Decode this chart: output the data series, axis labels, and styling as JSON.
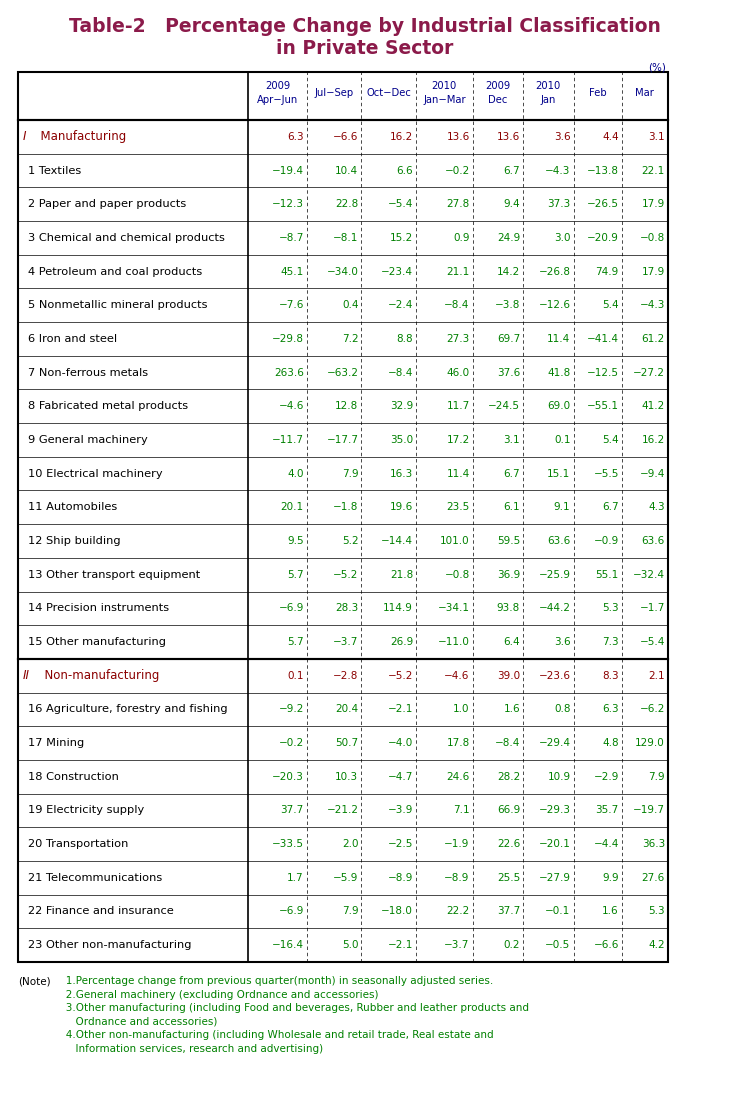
{
  "title_line1": "Table-2   Percentage Change by Industrial Classification",
  "title_line2": "in Private Sector",
  "title_color": "#8B1A4A",
  "header_color": "#00008B",
  "data_color": "#008000",
  "section_value_color": "#8B0000",
  "section_label_color": "#8B0000",
  "note_color": "#008000",
  "rows": [
    {
      "label": "I",
      "label2": "  Manufacturing",
      "is_section": true,
      "values": [
        "6.3",
        "−6.6",
        "16.2",
        "13.6",
        "13.6",
        "3.6",
        "4.4",
        "3.1"
      ]
    },
    {
      "label": "  1 Textiles",
      "label2": "",
      "is_section": false,
      "values": [
        "−19.4",
        "10.4",
        "6.6",
        "−0.2",
        "6.7",
        "−4.3",
        "−13.8",
        "22.1"
      ]
    },
    {
      "label": "  2 Paper and paper products",
      "label2": "",
      "is_section": false,
      "values": [
        "−12.3",
        "22.8",
        "−5.4",
        "27.8",
        "9.4",
        "37.3",
        "−26.5",
        "17.9"
      ]
    },
    {
      "label": "  3 Chemical and chemical products",
      "label2": "",
      "is_section": false,
      "values": [
        "−8.7",
        "−8.1",
        "15.2",
        "0.9",
        "24.9",
        "3.0",
        "−20.9",
        "−0.8"
      ]
    },
    {
      "label": "  4 Petroleum and coal products",
      "label2": "",
      "is_section": false,
      "values": [
        "45.1",
        "−34.0",
        "−23.4",
        "21.1",
        "14.2",
        "−26.8",
        "74.9",
        "17.9"
      ]
    },
    {
      "label": "  5 Nonmetallic mineral products",
      "label2": "",
      "is_section": false,
      "values": [
        "−7.6",
        "0.4",
        "−2.4",
        "−8.4",
        "−3.8",
        "−12.6",
        "5.4",
        "−4.3"
      ]
    },
    {
      "label": "  6 Iron and steel",
      "label2": "",
      "is_section": false,
      "values": [
        "−29.8",
        "7.2",
        "8.8",
        "27.3",
        "69.7",
        "11.4",
        "−41.4",
        "61.2"
      ]
    },
    {
      "label": "  7 Non-ferrous metals",
      "label2": "",
      "is_section": false,
      "values": [
        "263.6",
        "−63.2",
        "−8.4",
        "46.0",
        "37.6",
        "41.8",
        "−12.5",
        "−27.2"
      ]
    },
    {
      "label": "  8 Fabricated metal products",
      "label2": "",
      "is_section": false,
      "values": [
        "−4.6",
        "12.8",
        "32.9",
        "11.7",
        "−24.5",
        "69.0",
        "−55.1",
        "41.2"
      ]
    },
    {
      "label": "  9 General machinery",
      "label2": "",
      "is_section": false,
      "values": [
        "−11.7",
        "−17.7",
        "35.0",
        "17.2",
        "3.1",
        "0.1",
        "5.4",
        "16.2"
      ]
    },
    {
      "label": "  10 Electrical machinery",
      "label2": "",
      "is_section": false,
      "values": [
        "4.0",
        "7.9",
        "16.3",
        "11.4",
        "6.7",
        "15.1",
        "−5.5",
        "−9.4"
      ]
    },
    {
      "label": "  11 Automobiles",
      "label2": "",
      "is_section": false,
      "values": [
        "20.1",
        "−1.8",
        "19.6",
        "23.5",
        "6.1",
        "9.1",
        "6.7",
        "4.3"
      ]
    },
    {
      "label": "  12 Ship building",
      "label2": "",
      "is_section": false,
      "values": [
        "9.5",
        "5.2",
        "−14.4",
        "101.0",
        "59.5",
        "63.6",
        "−0.9",
        "63.6"
      ]
    },
    {
      "label": "  13 Other transport equipment",
      "label2": "",
      "is_section": false,
      "values": [
        "5.7",
        "−5.2",
        "21.8",
        "−0.8",
        "36.9",
        "−25.9",
        "55.1",
        "−32.4"
      ]
    },
    {
      "label": "  14 Precision instruments",
      "label2": "",
      "is_section": false,
      "values": [
        "−6.9",
        "28.3",
        "114.9",
        "−34.1",
        "93.8",
        "−44.2",
        "5.3",
        "−1.7"
      ]
    },
    {
      "label": "  15 Other manufacturing",
      "label2": "",
      "is_section": false,
      "values": [
        "5.7",
        "−3.7",
        "26.9",
        "−11.0",
        "6.4",
        "3.6",
        "7.3",
        "−5.4"
      ]
    },
    {
      "label": "II",
      "label2": "  Non-manufacturing",
      "is_section": true,
      "values": [
        "0.1",
        "−2.8",
        "−5.2",
        "−4.6",
        "39.0",
        "−23.6",
        "8.3",
        "2.1"
      ]
    },
    {
      "label": "  16 Agriculture, forestry and fishing",
      "label2": "",
      "is_section": false,
      "values": [
        "−9.2",
        "20.4",
        "−2.1",
        "1.0",
        "1.6",
        "0.8",
        "6.3",
        "−6.2"
      ]
    },
    {
      "label": "  17 Mining",
      "label2": "",
      "is_section": false,
      "values": [
        "−0.2",
        "50.7",
        "−4.0",
        "17.8",
        "−8.4",
        "−29.4",
        "4.8",
        "129.0"
      ]
    },
    {
      "label": "  18 Construction",
      "label2": "",
      "is_section": false,
      "values": [
        "−20.3",
        "10.3",
        "−4.7",
        "24.6",
        "28.2",
        "10.9",
        "−2.9",
        "7.9"
      ]
    },
    {
      "label": "  19 Electricity supply",
      "label2": "",
      "is_section": false,
      "values": [
        "37.7",
        "−21.2",
        "−3.9",
        "7.1",
        "66.9",
        "−29.3",
        "35.7",
        "−19.7"
      ]
    },
    {
      "label": "  20 Transportation",
      "label2": "",
      "is_section": false,
      "values": [
        "−33.5",
        "2.0",
        "−2.5",
        "−1.9",
        "22.6",
        "−20.1",
        "−4.4",
        "36.3"
      ]
    },
    {
      "label": "  21 Telecommunications",
      "label2": "",
      "is_section": false,
      "values": [
        "1.7",
        "−5.9",
        "−8.9",
        "−8.9",
        "25.5",
        "−27.9",
        "9.9",
        "27.6"
      ]
    },
    {
      "label": "  22 Finance and insurance",
      "label2": "",
      "is_section": false,
      "values": [
        "−6.9",
        "7.9",
        "−18.0",
        "22.2",
        "37.7",
        "−0.1",
        "1.6",
        "5.3"
      ]
    },
    {
      "label": "  23 Other non-manufacturing",
      "label2": "",
      "is_section": false,
      "values": [
        "−16.4",
        "5.0",
        "−2.1",
        "−3.7",
        "0.2",
        "−0.5",
        "−6.6",
        "4.2"
      ]
    }
  ],
  "note_lines": [
    [
      "(Note)",
      "   1.Percentage change from previous quarter(month) in seasonally adjusted series."
    ],
    [
      "",
      "   2.General machinery (excluding Ordnance and accessories)"
    ],
    [
      "",
      "   3.Other manufacturing (including Food and beverages, Rubber and leather products and"
    ],
    [
      "",
      "      Ordnance and accessories)"
    ],
    [
      "",
      "   4.Other non-manufacturing (including Wholesale and retail trade, Real estate and"
    ],
    [
      "",
      "      Information services, research and advertising)"
    ]
  ]
}
